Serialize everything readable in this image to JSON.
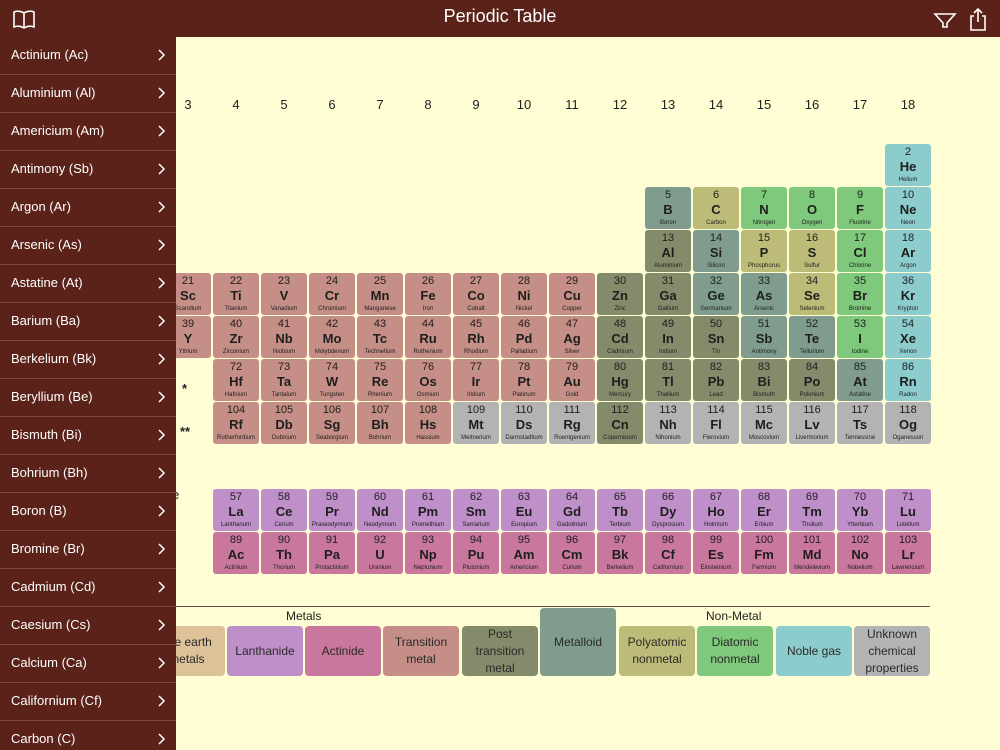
{
  "header": {
    "title": "Periodic Table",
    "book_icon": "book-icon",
    "filter_icon": "filter-icon",
    "share_icon": "share-icon"
  },
  "colors": {
    "header_bg": "#5b2219",
    "sidebar_bg": "#5b2219",
    "page_bg": "#fefdd3",
    "alkaline_earth": "#dcc199",
    "transition": "#c58e87",
    "post_transition": "#848b6b",
    "metalloid": "#7f9c8f",
    "polyatomic": "#bcbc78",
    "diatomic": "#7ec97b",
    "noble": "#8ccccc",
    "lanthanide": "#bf8fc9",
    "actinide": "#c9779c",
    "unknown": "#b3b3b3"
  },
  "sidebar": {
    "items": [
      {
        "label": "Actinium (Ac)"
      },
      {
        "label": "Aluminium (Al)"
      },
      {
        "label": "Americium (Am)"
      },
      {
        "label": "Antimony (Sb)"
      },
      {
        "label": "Argon (Ar)"
      },
      {
        "label": "Arsenic (As)"
      },
      {
        "label": "Astatine (At)"
      },
      {
        "label": "Barium (Ba)"
      },
      {
        "label": "Berkelium (Bk)"
      },
      {
        "label": "Beryllium (Be)"
      },
      {
        "label": "Bismuth (Bi)"
      },
      {
        "label": "Bohrium (Bh)"
      },
      {
        "label": "Boron (B)"
      },
      {
        "label": "Bromine (Br)"
      },
      {
        "label": "Cadmium (Cd)"
      },
      {
        "label": "Caesium (Cs)"
      },
      {
        "label": "Calcium (Ca)"
      },
      {
        "label": "Californium (Cf)"
      },
      {
        "label": "Carbon (C)"
      }
    ]
  },
  "table": {
    "groups": [
      "3",
      "4",
      "5",
      "6",
      "7",
      "8",
      "9",
      "10",
      "11",
      "12",
      "13",
      "14",
      "15",
      "16",
      "17",
      "18"
    ],
    "markers": {
      "lanthanide": "*",
      "actinide": "**"
    },
    "partial_label": "e",
    "elements": [
      {
        "g": 18,
        "row": 1,
        "n": "2",
        "s": "He",
        "name": "Helium",
        "c": "noble"
      },
      {
        "g": 13,
        "row": 2,
        "n": "5",
        "s": "B",
        "name": "Boron",
        "c": "metalloid"
      },
      {
        "g": 14,
        "row": 2,
        "n": "6",
        "s": "C",
        "name": "Carbon",
        "c": "polyatomic"
      },
      {
        "g": 15,
        "row": 2,
        "n": "7",
        "s": "N",
        "name": "Nitrogen",
        "c": "diatomic"
      },
      {
        "g": 16,
        "row": 2,
        "n": "8",
        "s": "O",
        "name": "Oxygen",
        "c": "diatomic"
      },
      {
        "g": 17,
        "row": 2,
        "n": "9",
        "s": "F",
        "name": "Fluorine",
        "c": "diatomic"
      },
      {
        "g": 18,
        "row": 2,
        "n": "10",
        "s": "Ne",
        "name": "Neon",
        "c": "noble"
      },
      {
        "g": 13,
        "row": 3,
        "n": "13",
        "s": "Al",
        "name": "Aluminium",
        "c": "post_transition"
      },
      {
        "g": 14,
        "row": 3,
        "n": "14",
        "s": "Si",
        "name": "Silicon",
        "c": "metalloid"
      },
      {
        "g": 15,
        "row": 3,
        "n": "15",
        "s": "P",
        "name": "Phosphorus",
        "c": "polyatomic"
      },
      {
        "g": 16,
        "row": 3,
        "n": "16",
        "s": "S",
        "name": "Sulfur",
        "c": "polyatomic"
      },
      {
        "g": 17,
        "row": 3,
        "n": "17",
        "s": "Cl",
        "name": "Chlorine",
        "c": "diatomic"
      },
      {
        "g": 18,
        "row": 3,
        "n": "18",
        "s": "Ar",
        "name": "Argon",
        "c": "noble"
      },
      {
        "g": 3,
        "row": 4,
        "n": "21",
        "s": "Sc",
        "name": "Scandium",
        "c": "transition"
      },
      {
        "g": 4,
        "row": 4,
        "n": "22",
        "s": "Ti",
        "name": "Titanium",
        "c": "transition"
      },
      {
        "g": 5,
        "row": 4,
        "n": "23",
        "s": "V",
        "name": "Vanadium",
        "c": "transition"
      },
      {
        "g": 6,
        "row": 4,
        "n": "24",
        "s": "Cr",
        "name": "Chromium",
        "c": "transition"
      },
      {
        "g": 7,
        "row": 4,
        "n": "25",
        "s": "Mn",
        "name": "Manganese",
        "c": "transition"
      },
      {
        "g": 8,
        "row": 4,
        "n": "26",
        "s": "Fe",
        "name": "Iron",
        "c": "transition"
      },
      {
        "g": 9,
        "row": 4,
        "n": "27",
        "s": "Co",
        "name": "Cobalt",
        "c": "transition"
      },
      {
        "g": 10,
        "row": 4,
        "n": "28",
        "s": "Ni",
        "name": "Nickel",
        "c": "transition"
      },
      {
        "g": 11,
        "row": 4,
        "n": "29",
        "s": "Cu",
        "name": "Copper",
        "c": "transition"
      },
      {
        "g": 12,
        "row": 4,
        "n": "30",
        "s": "Zn",
        "name": "Zinc",
        "c": "post_transition"
      },
      {
        "g": 13,
        "row": 4,
        "n": "31",
        "s": "Ga",
        "name": "Gallium",
        "c": "post_transition"
      },
      {
        "g": 14,
        "row": 4,
        "n": "32",
        "s": "Ge",
        "name": "Germanium",
        "c": "metalloid"
      },
      {
        "g": 15,
        "row": 4,
        "n": "33",
        "s": "As",
        "name": "Arsenic",
        "c": "metalloid"
      },
      {
        "g": 16,
        "row": 4,
        "n": "34",
        "s": "Se",
        "name": "Selenium",
        "c": "polyatomic"
      },
      {
        "g": 17,
        "row": 4,
        "n": "35",
        "s": "Br",
        "name": "Bromine",
        "c": "diatomic"
      },
      {
        "g": 18,
        "row": 4,
        "n": "36",
        "s": "Kr",
        "name": "Krypton",
        "c": "noble"
      },
      {
        "g": 3,
        "row": 5,
        "n": "39",
        "s": "Y",
        "name": "Yttrium",
        "c": "transition"
      },
      {
        "g": 4,
        "row": 5,
        "n": "40",
        "s": "Zr",
        "name": "Zirconium",
        "c": "transition"
      },
      {
        "g": 5,
        "row": 5,
        "n": "41",
        "s": "Nb",
        "name": "Niobium",
        "c": "transition"
      },
      {
        "g": 6,
        "row": 5,
        "n": "42",
        "s": "Mo",
        "name": "Molybdenum",
        "c": "transition"
      },
      {
        "g": 7,
        "row": 5,
        "n": "43",
        "s": "Tc",
        "name": "Technetium",
        "c": "transition"
      },
      {
        "g": 8,
        "row": 5,
        "n": "44",
        "s": "Ru",
        "name": "Ruthenium",
        "c": "transition"
      },
      {
        "g": 9,
        "row": 5,
        "n": "45",
        "s": "Rh",
        "name": "Rhodium",
        "c": "transition"
      },
      {
        "g": 10,
        "row": 5,
        "n": "46",
        "s": "Pd",
        "name": "Palladium",
        "c": "transition"
      },
      {
        "g": 11,
        "row": 5,
        "n": "47",
        "s": "Ag",
        "name": "Silver",
        "c": "transition"
      },
      {
        "g": 12,
        "row": 5,
        "n": "48",
        "s": "Cd",
        "name": "Cadmium",
        "c": "post_transition"
      },
      {
        "g": 13,
        "row": 5,
        "n": "49",
        "s": "In",
        "name": "Indium",
        "c": "post_transition"
      },
      {
        "g": 14,
        "row": 5,
        "n": "50",
        "s": "Sn",
        "name": "Tin",
        "c": "post_transition"
      },
      {
        "g": 15,
        "row": 5,
        "n": "51",
        "s": "Sb",
        "name": "Antimony",
        "c": "metalloid"
      },
      {
        "g": 16,
        "row": 5,
        "n": "52",
        "s": "Te",
        "name": "Tellurium",
        "c": "metalloid"
      },
      {
        "g": 17,
        "row": 5,
        "n": "53",
        "s": "I",
        "name": "Iodine",
        "c": "diatomic"
      },
      {
        "g": 18,
        "row": 5,
        "n": "54",
        "s": "Xe",
        "name": "Xenon",
        "c": "noble"
      },
      {
        "g": 4,
        "row": 6,
        "n": "72",
        "s": "Hf",
        "name": "Hafnium",
        "c": "transition"
      },
      {
        "g": 5,
        "row": 6,
        "n": "73",
        "s": "Ta",
        "name": "Tantalum",
        "c": "transition"
      },
      {
        "g": 6,
        "row": 6,
        "n": "74",
        "s": "W",
        "name": "Tungsten",
        "c": "transition"
      },
      {
        "g": 7,
        "row": 6,
        "n": "75",
        "s": "Re",
        "name": "Rhenium",
        "c": "transition"
      },
      {
        "g": 8,
        "row": 6,
        "n": "76",
        "s": "Os",
        "name": "Osmium",
        "c": "transition"
      },
      {
        "g": 9,
        "row": 6,
        "n": "77",
        "s": "Ir",
        "name": "Iridium",
        "c": "transition"
      },
      {
        "g": 10,
        "row": 6,
        "n": "78",
        "s": "Pt",
        "name": "Platinum",
        "c": "transition"
      },
      {
        "g": 11,
        "row": 6,
        "n": "79",
        "s": "Au",
        "name": "Gold",
        "c": "transition"
      },
      {
        "g": 12,
        "row": 6,
        "n": "80",
        "s": "Hg",
        "name": "Mercury",
        "c": "post_transition"
      },
      {
        "g": 13,
        "row": 6,
        "n": "81",
        "s": "Tl",
        "name": "Thallium",
        "c": "post_transition"
      },
      {
        "g": 14,
        "row": 6,
        "n": "82",
        "s": "Pb",
        "name": "Lead",
        "c": "post_transition"
      },
      {
        "g": 15,
        "row": 6,
        "n": "83",
        "s": "Bi",
        "name": "Bismuth",
        "c": "post_transition"
      },
      {
        "g": 16,
        "row": 6,
        "n": "84",
        "s": "Po",
        "name": "Polonium",
        "c": "post_transition"
      },
      {
        "g": 17,
        "row": 6,
        "n": "85",
        "s": "At",
        "name": "Astatine",
        "c": "metalloid"
      },
      {
        "g": 18,
        "row": 6,
        "n": "86",
        "s": "Rn",
        "name": "Radon",
        "c": "noble"
      },
      {
        "g": 4,
        "row": 7,
        "n": "104",
        "s": "Rf",
        "name": "Rutherfordium",
        "c": "transition"
      },
      {
        "g": 5,
        "row": 7,
        "n": "105",
        "s": "Db",
        "name": "Dubnium",
        "c": "transition"
      },
      {
        "g": 6,
        "row": 7,
        "n": "106",
        "s": "Sg",
        "name": "Seaborgium",
        "c": "transition"
      },
      {
        "g": 7,
        "row": 7,
        "n": "107",
        "s": "Bh",
        "name": "Bohrium",
        "c": "transition"
      },
      {
        "g": 8,
        "row": 7,
        "n": "108",
        "s": "Hs",
        "name": "Hassium",
        "c": "transition"
      },
      {
        "g": 9,
        "row": 7,
        "n": "109",
        "s": "Mt",
        "name": "Meitnerium",
        "c": "unknown"
      },
      {
        "g": 10,
        "row": 7,
        "n": "110",
        "s": "Ds",
        "name": "Darmstadtium",
        "c": "unknown"
      },
      {
        "g": 11,
        "row": 7,
        "n": "111",
        "s": "Rg",
        "name": "Roentgenium",
        "c": "unknown"
      },
      {
        "g": 12,
        "row": 7,
        "n": "112",
        "s": "Cn",
        "name": "Copernicium",
        "c": "post_transition"
      },
      {
        "g": 13,
        "row": 7,
        "n": "113",
        "s": "Nh",
        "name": "Nihonium",
        "c": "unknown"
      },
      {
        "g": 14,
        "row": 7,
        "n": "114",
        "s": "Fl",
        "name": "Flerovium",
        "c": "unknown"
      },
      {
        "g": 15,
        "row": 7,
        "n": "115",
        "s": "Mc",
        "name": "Moscovium",
        "c": "unknown"
      },
      {
        "g": 16,
        "row": 7,
        "n": "116",
        "s": "Lv",
        "name": "Livermorium",
        "c": "unknown"
      },
      {
        "g": 17,
        "row": 7,
        "n": "117",
        "s": "Ts",
        "name": "Tennessine",
        "c": "unknown"
      },
      {
        "g": 18,
        "row": 7,
        "n": "118",
        "s": "Og",
        "name": "Oganesson",
        "c": "unknown"
      },
      {
        "g": 4,
        "row": 8,
        "n": "57",
        "s": "La",
        "name": "Lanthanum",
        "c": "lanthanide"
      },
      {
        "g": 5,
        "row": 8,
        "n": "58",
        "s": "Ce",
        "name": "Cerium",
        "c": "lanthanide"
      },
      {
        "g": 6,
        "row": 8,
        "n": "59",
        "s": "Pr",
        "name": "Praseodymium",
        "c": "lanthanide"
      },
      {
        "g": 7,
        "row": 8,
        "n": "60",
        "s": "Nd",
        "name": "Neodymium",
        "c": "lanthanide"
      },
      {
        "g": 8,
        "row": 8,
        "n": "61",
        "s": "Pm",
        "name": "Promethium",
        "c": "lanthanide"
      },
      {
        "g": 9,
        "row": 8,
        "n": "62",
        "s": "Sm",
        "name": "Samarium",
        "c": "lanthanide"
      },
      {
        "g": 10,
        "row": 8,
        "n": "63",
        "s": "Eu",
        "name": "Europium",
        "c": "lanthanide"
      },
      {
        "g": 11,
        "row": 8,
        "n": "64",
        "s": "Gd",
        "name": "Gadolinium",
        "c": "lanthanide"
      },
      {
        "g": 12,
        "row": 8,
        "n": "65",
        "s": "Tb",
        "name": "Terbium",
        "c": "lanthanide"
      },
      {
        "g": 13,
        "row": 8,
        "n": "66",
        "s": "Dy",
        "name": "Dysprosium",
        "c": "lanthanide"
      },
      {
        "g": 14,
        "row": 8,
        "n": "67",
        "s": "Ho",
        "name": "Holmium",
        "c": "lanthanide"
      },
      {
        "g": 15,
        "row": 8,
        "n": "68",
        "s": "Er",
        "name": "Erbium",
        "c": "lanthanide"
      },
      {
        "g": 16,
        "row": 8,
        "n": "69",
        "s": "Tm",
        "name": "Thulium",
        "c": "lanthanide"
      },
      {
        "g": 17,
        "row": 8,
        "n": "70",
        "s": "Yb",
        "name": "Ytterbium",
        "c": "lanthanide"
      },
      {
        "g": 18,
        "row": 8,
        "n": "71",
        "s": "Lu",
        "name": "Lutetium",
        "c": "lanthanide"
      },
      {
        "g": 4,
        "row": 9,
        "n": "89",
        "s": "Ac",
        "name": "Actinium",
        "c": "actinide"
      },
      {
        "g": 5,
        "row": 9,
        "n": "90",
        "s": "Th",
        "name": "Thorium",
        "c": "actinide"
      },
      {
        "g": 6,
        "row": 9,
        "n": "91",
        "s": "Pa",
        "name": "Protactinium",
        "c": "actinide"
      },
      {
        "g": 7,
        "row": 9,
        "n": "92",
        "s": "U",
        "name": "Uranium",
        "c": "actinide"
      },
      {
        "g": 8,
        "row": 9,
        "n": "93",
        "s": "Np",
        "name": "Neptunium",
        "c": "actinide"
      },
      {
        "g": 9,
        "row": 9,
        "n": "94",
        "s": "Pu",
        "name": "Plutonium",
        "c": "actinide"
      },
      {
        "g": 10,
        "row": 9,
        "n": "95",
        "s": "Am",
        "name": "Americium",
        "c": "actinide"
      },
      {
        "g": 11,
        "row": 9,
        "n": "96",
        "s": "Cm",
        "name": "Curium",
        "c": "actinide"
      },
      {
        "g": 12,
        "row": 9,
        "n": "97",
        "s": "Bk",
        "name": "Berkelium",
        "c": "actinide"
      },
      {
        "g": 13,
        "row": 9,
        "n": "98",
        "s": "Cf",
        "name": "Californium",
        "c": "actinide"
      },
      {
        "g": 14,
        "row": 9,
        "n": "99",
        "s": "Es",
        "name": "Einsteinium",
        "c": "actinide"
      },
      {
        "g": 15,
        "row": 9,
        "n": "100",
        "s": "Fm",
        "name": "Fermium",
        "c": "actinide"
      },
      {
        "g": 16,
        "row": 9,
        "n": "101",
        "s": "Md",
        "name": "Mendelevium",
        "c": "actinide"
      },
      {
        "g": 17,
        "row": 9,
        "n": "102",
        "s": "No",
        "name": "Nobelium",
        "c": "actinide"
      },
      {
        "g": 18,
        "row": 9,
        "n": "103",
        "s": "Lr",
        "name": "Lawrencium",
        "c": "actinide"
      }
    ]
  },
  "legend": {
    "metals_header": "Metals",
    "nonmetal_header": "Non-Metal",
    "items": [
      {
        "label": "ine earth\nnetals",
        "c": "alkaline_earth"
      },
      {
        "label": "Lanthanide",
        "c": "lanthanide"
      },
      {
        "label": "Actinide",
        "c": "actinide"
      },
      {
        "label": "Transition\nmetal",
        "c": "transition"
      },
      {
        "label": "Post\ntransition\nmetal",
        "c": "post_transition"
      },
      {
        "label": "Metalloid",
        "c": "metalloid"
      },
      {
        "label": "Polyatomic\nnonmetal",
        "c": "polyatomic"
      },
      {
        "label": "Diatomic\nnonmetal",
        "c": "diatomic"
      },
      {
        "label": "Noble gas",
        "c": "noble"
      },
      {
        "label": "Unknown\nchemical\nproperties",
        "c": "unknown"
      }
    ]
  }
}
